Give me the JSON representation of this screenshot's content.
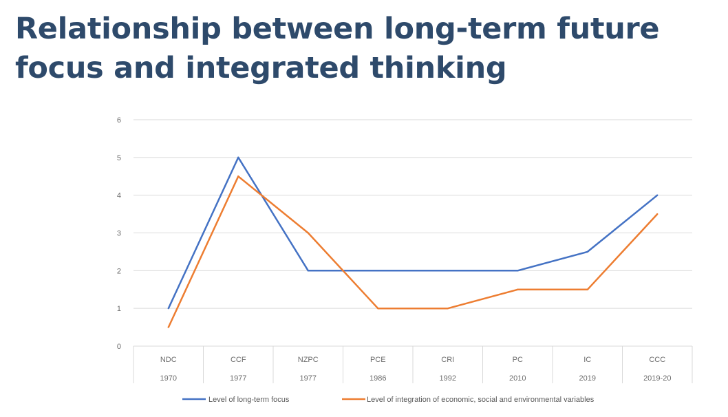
{
  "title_line1": "Relationship between long-term future",
  "title_line2": "focus and integrated thinking",
  "chart_data": {
    "type": "line",
    "categories": [
      "NDC",
      "CCF",
      "NZPC",
      "PCE",
      "CRI",
      "PC",
      "IC",
      "CCC"
    ],
    "categories_year": [
      "1970",
      "1977",
      "1977",
      "1986",
      "1992",
      "2010",
      "2019",
      "2019-20"
    ],
    "ylim": [
      0,
      6
    ],
    "yticks": [
      0,
      1,
      2,
      3,
      4,
      5,
      6
    ],
    "grid": true,
    "legend_position": "bottom",
    "series": [
      {
        "name": "Level of long-term focus",
        "color": "#4472c4",
        "values": [
          1,
          5,
          2,
          2,
          2,
          2,
          2.5,
          4
        ]
      },
      {
        "name": "Level of integration of economic, social and environmental variables",
        "color": "#ed7d31",
        "values": [
          0.5,
          4.5,
          3,
          1,
          1,
          1.5,
          1.5,
          3.5
        ]
      }
    ]
  }
}
